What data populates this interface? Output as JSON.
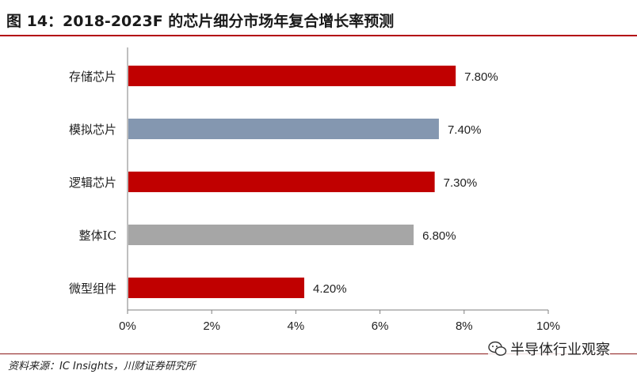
{
  "title": "图 14：2018-2023F 的芯片细分市场年复合增长率预测",
  "source": "资料来源：IC Insights，川财证券研究所",
  "watermark": "半导体行业观察",
  "chart_data": {
    "type": "bar",
    "orientation": "horizontal",
    "categories": [
      "存储芯片",
      "模拟芯片",
      "逻辑芯片",
      "整体IC",
      "微型组件"
    ],
    "values": [
      7.8,
      7.4,
      7.3,
      6.8,
      4.2
    ],
    "value_labels": [
      "7.80%",
      "7.40%",
      "7.30%",
      "6.80%",
      "4.20%"
    ],
    "bar_colors": [
      "#c00000",
      "#8497b0",
      "#c00000",
      "#a6a6a6",
      "#c00000"
    ],
    "xlim": [
      0,
      10
    ],
    "xticks": [
      0,
      2,
      4,
      6,
      8,
      10
    ],
    "xtick_labels": [
      "0%",
      "2%",
      "4%",
      "6%",
      "8%",
      "10%"
    ],
    "xlabel": "",
    "ylabel": "",
    "grid": false,
    "legend": false
  }
}
